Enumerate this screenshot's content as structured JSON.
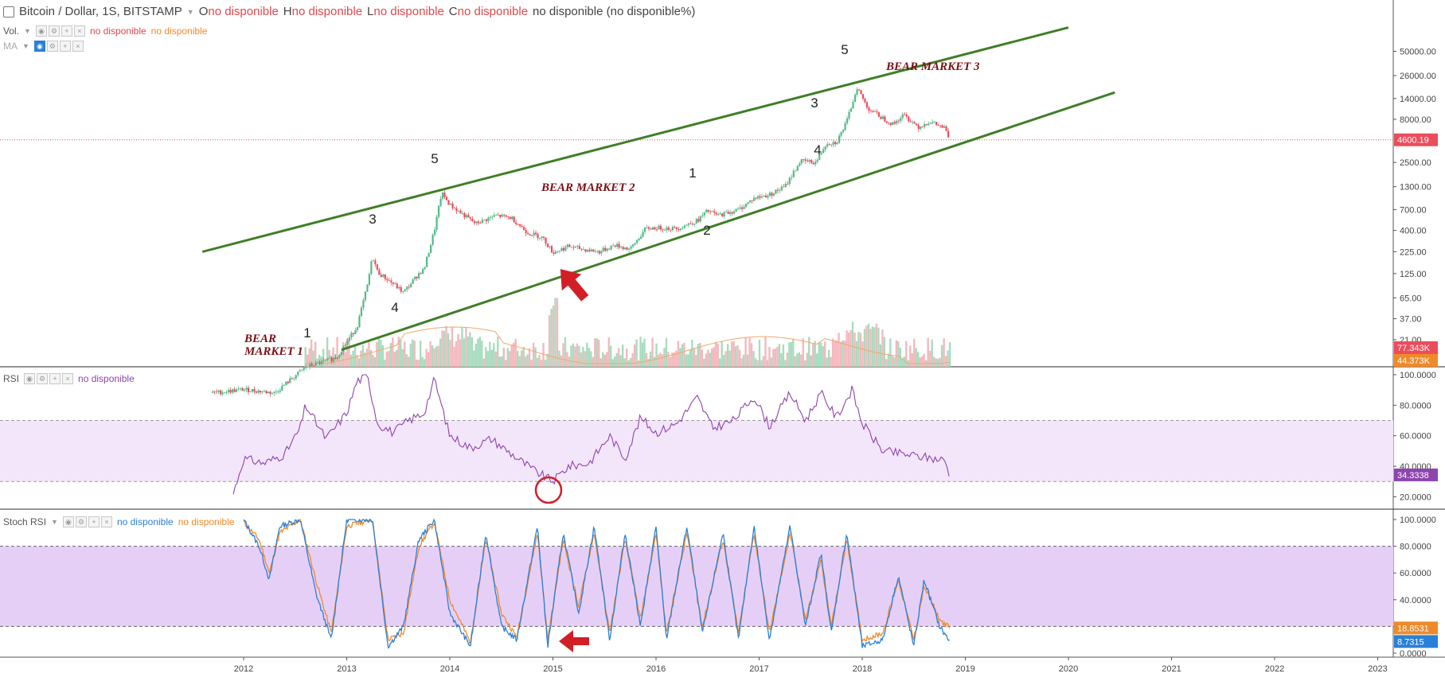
{
  "header": {
    "symbol_title": "Bitcoin / Dollar, 1S, BITSTAMP",
    "ohlc": [
      {
        "key": "O",
        "value": "no disponible"
      },
      {
        "key": "H",
        "value": "no disponible"
      },
      {
        "key": "L",
        "value": "no disponible"
      },
      {
        "key": "C",
        "value": "no disponible"
      }
    ],
    "change": "no disponible (no disponible%)",
    "vol_label": "Vol.",
    "vol_value_1": "no disponible",
    "vol_value_2": "no disponible",
    "ma_label": "MA"
  },
  "rsi_legend": {
    "label": "RSI",
    "value": "no disponible"
  },
  "stoch_legend": {
    "label": "Stoch RSI",
    "value_k": "no disponible",
    "value_d": "no disponible"
  },
  "colors": {
    "up": "#53b987",
    "down": "#eb4d5c",
    "channel": "#3f7f27",
    "annotation": "#7a0f14",
    "arrow": "#d21f26",
    "rsi": "#8e44ad",
    "stoch_k": "#2a80d6",
    "stoch_d": "#f08a28",
    "rsi_band": "#f3e6fb",
    "stoch_band": "#e6cff7"
  },
  "chart_data": [
    {
      "type": "candlestick",
      "title": "Bitcoin / Dollar, 1S, BITSTAMP",
      "x_ticks": [
        "2012",
        "2013",
        "2014",
        "2015",
        "2016",
        "2017",
        "2018",
        "2019",
        "2020",
        "2021",
        "2022",
        "2023"
      ],
      "y_scale": "log",
      "y_ticks": [
        "21.00",
        "37.00",
        "65.00",
        "125.00",
        "225.00",
        "400.00",
        "700.00",
        "1300.00",
        "2500.00",
        "4600.19",
        "8000.00",
        "14000.00",
        "26000.00",
        "50000.00"
      ],
      "last_price": "4600.19",
      "price_series": [
        {
          "x": 2011.7,
          "y": 5
        },
        {
          "x": 2012.0,
          "y": 5.5
        },
        {
          "x": 2012.3,
          "y": 5
        },
        {
          "x": 2012.6,
          "y": 10
        },
        {
          "x": 2012.9,
          "y": 13
        },
        {
          "x": 2013.1,
          "y": 30
        },
        {
          "x": 2013.2,
          "y": 90
        },
        {
          "x": 2013.25,
          "y": 200
        },
        {
          "x": 2013.3,
          "y": 130
        },
        {
          "x": 2013.45,
          "y": 95
        },
        {
          "x": 2013.55,
          "y": 75
        },
        {
          "x": 2013.7,
          "y": 125
        },
        {
          "x": 2013.75,
          "y": 140
        },
        {
          "x": 2013.85,
          "y": 400
        },
        {
          "x": 2013.92,
          "y": 1100
        },
        {
          "x": 2014.0,
          "y": 800
        },
        {
          "x": 2014.1,
          "y": 650
        },
        {
          "x": 2014.25,
          "y": 480
        },
        {
          "x": 2014.45,
          "y": 600
        },
        {
          "x": 2014.6,
          "y": 560
        },
        {
          "x": 2014.75,
          "y": 380
        },
        {
          "x": 2014.9,
          "y": 330
        },
        {
          "x": 2015.0,
          "y": 220
        },
        {
          "x": 2015.15,
          "y": 260
        },
        {
          "x": 2015.3,
          "y": 240
        },
        {
          "x": 2015.45,
          "y": 225
        },
        {
          "x": 2015.6,
          "y": 270
        },
        {
          "x": 2015.75,
          "y": 240
        },
        {
          "x": 2015.9,
          "y": 420
        },
        {
          "x": 2016.0,
          "y": 430
        },
        {
          "x": 2016.2,
          "y": 420
        },
        {
          "x": 2016.4,
          "y": 520
        },
        {
          "x": 2016.5,
          "y": 680
        },
        {
          "x": 2016.6,
          "y": 600
        },
        {
          "x": 2016.8,
          "y": 700
        },
        {
          "x": 2016.95,
          "y": 950
        },
        {
          "x": 2017.1,
          "y": 1050
        },
        {
          "x": 2017.25,
          "y": 1300
        },
        {
          "x": 2017.4,
          "y": 2600
        },
        {
          "x": 2017.55,
          "y": 2500
        },
        {
          "x": 2017.65,
          "y": 4200
        },
        {
          "x": 2017.75,
          "y": 4300
        },
        {
          "x": 2017.85,
          "y": 7500
        },
        {
          "x": 2017.95,
          "y": 19000
        },
        {
          "x": 2018.05,
          "y": 11000
        },
        {
          "x": 2018.15,
          "y": 9000
        },
        {
          "x": 2018.3,
          "y": 7000
        },
        {
          "x": 2018.4,
          "y": 9000
        },
        {
          "x": 2018.55,
          "y": 6500
        },
        {
          "x": 2018.65,
          "y": 7500
        },
        {
          "x": 2018.8,
          "y": 6300
        },
        {
          "x": 2018.85,
          "y": 4600
        }
      ],
      "channel_lines": [
        {
          "from": {
            "x": 2011.6,
            "y": 225
          },
          "to": {
            "x": 2020.0,
            "y": 95000
          }
        },
        {
          "from": {
            "x": 2012.95,
            "y": 16
          },
          "to": {
            "x": 2020.45,
            "y": 16500
          }
        }
      ],
      "annotations": [
        {
          "text": "BEAR\nMARKET 1",
          "kind": "bold-italic"
        },
        {
          "text": "BEAR MARKET 2",
          "kind": "bold-italic"
        },
        {
          "text": "BEAR MARKET 3",
          "kind": "bold-italic"
        },
        {
          "text": "1"
        },
        {
          "text": "3"
        },
        {
          "text": "4"
        },
        {
          "text": "5"
        },
        {
          "text": "1"
        },
        {
          "text": "2"
        },
        {
          "text": "3"
        },
        {
          "text": "4"
        },
        {
          "text": "5"
        }
      ],
      "volume_labels": [
        "77.343K",
        "44.373K"
      ]
    },
    {
      "type": "line",
      "title": "RSI",
      "y_ticks": [
        "20.0000",
        "40.0000",
        "60.0000",
        "80.0000",
        "100.0000"
      ],
      "band": [
        30,
        70
      ],
      "last_value": "34.3338",
      "series": [
        {
          "values": [
            {
              "x": 2011.9,
              "y": 22
            },
            {
              "x": 2012.0,
              "y": 45
            },
            {
              "x": 2012.2,
              "y": 42
            },
            {
              "x": 2012.4,
              "y": 48
            },
            {
              "x": 2012.55,
              "y": 65
            },
            {
              "x": 2012.6,
              "y": 80
            },
            {
              "x": 2012.8,
              "y": 58
            },
            {
              "x": 2013.0,
              "y": 75
            },
            {
              "x": 2013.1,
              "y": 96
            },
            {
              "x": 2013.2,
              "y": 99
            },
            {
              "x": 2013.3,
              "y": 68
            },
            {
              "x": 2013.45,
              "y": 62
            },
            {
              "x": 2013.6,
              "y": 70
            },
            {
              "x": 2013.75,
              "y": 75
            },
            {
              "x": 2013.85,
              "y": 97
            },
            {
              "x": 2014.0,
              "y": 60
            },
            {
              "x": 2014.2,
              "y": 52
            },
            {
              "x": 2014.4,
              "y": 58
            },
            {
              "x": 2014.6,
              "y": 48
            },
            {
              "x": 2014.8,
              "y": 38
            },
            {
              "x": 2015.0,
              "y": 30
            },
            {
              "x": 2015.15,
              "y": 40
            },
            {
              "x": 2015.35,
              "y": 42
            },
            {
              "x": 2015.55,
              "y": 60
            },
            {
              "x": 2015.7,
              "y": 45
            },
            {
              "x": 2015.85,
              "y": 72
            },
            {
              "x": 2016.0,
              "y": 62
            },
            {
              "x": 2016.2,
              "y": 68
            },
            {
              "x": 2016.4,
              "y": 85
            },
            {
              "x": 2016.55,
              "y": 65
            },
            {
              "x": 2016.75,
              "y": 70
            },
            {
              "x": 2016.95,
              "y": 86
            },
            {
              "x": 2017.1,
              "y": 66
            },
            {
              "x": 2017.3,
              "y": 88
            },
            {
              "x": 2017.45,
              "y": 70
            },
            {
              "x": 2017.6,
              "y": 88
            },
            {
              "x": 2017.75,
              "y": 72
            },
            {
              "x": 2017.9,
              "y": 90
            },
            {
              "x": 2018.0,
              "y": 68
            },
            {
              "x": 2018.2,
              "y": 50
            },
            {
              "x": 2018.4,
              "y": 48
            },
            {
              "x": 2018.6,
              "y": 46
            },
            {
              "x": 2018.8,
              "y": 44
            },
            {
              "x": 2018.85,
              "y": 34.3
            }
          ]
        }
      ]
    },
    {
      "type": "line",
      "title": "Stoch RSI",
      "y_ticks": [
        "0.0000",
        "20.0000",
        "40.0000",
        "60.0000",
        "80.0000",
        "100.0000"
      ],
      "band": [
        20,
        80
      ],
      "last_values": [
        "18.8531",
        "8.7315"
      ],
      "series": [
        {
          "values": [
            {
              "x": 2012.0,
              "y": 100
            },
            {
              "x": 2012.15,
              "y": 80
            },
            {
              "x": 2012.25,
              "y": 55
            },
            {
              "x": 2012.35,
              "y": 95
            },
            {
              "x": 2012.55,
              "y": 100
            },
            {
              "x": 2012.7,
              "y": 45
            },
            {
              "x": 2012.85,
              "y": 10
            },
            {
              "x": 2013.0,
              "y": 100
            },
            {
              "x": 2013.25,
              "y": 100
            },
            {
              "x": 2013.4,
              "y": 5
            },
            {
              "x": 2013.55,
              "y": 20
            },
            {
              "x": 2013.7,
              "y": 85
            },
            {
              "x": 2013.85,
              "y": 100
            },
            {
              "x": 2014.0,
              "y": 30
            },
            {
              "x": 2014.2,
              "y": 5
            },
            {
              "x": 2014.35,
              "y": 90
            },
            {
              "x": 2014.5,
              "y": 20
            },
            {
              "x": 2014.65,
              "y": 10
            },
            {
              "x": 2014.85,
              "y": 95
            },
            {
              "x": 2014.95,
              "y": 5
            },
            {
              "x": 2015.1,
              "y": 90
            },
            {
              "x": 2015.25,
              "y": 30
            },
            {
              "x": 2015.4,
              "y": 95
            },
            {
              "x": 2015.55,
              "y": 10
            },
            {
              "x": 2015.7,
              "y": 90
            },
            {
              "x": 2015.85,
              "y": 20
            },
            {
              "x": 2016.0,
              "y": 95
            },
            {
              "x": 2016.1,
              "y": 10
            },
            {
              "x": 2016.3,
              "y": 95
            },
            {
              "x": 2016.45,
              "y": 15
            },
            {
              "x": 2016.65,
              "y": 90
            },
            {
              "x": 2016.8,
              "y": 10
            },
            {
              "x": 2016.95,
              "y": 95
            },
            {
              "x": 2017.1,
              "y": 10
            },
            {
              "x": 2017.3,
              "y": 95
            },
            {
              "x": 2017.45,
              "y": 20
            },
            {
              "x": 2017.6,
              "y": 75
            },
            {
              "x": 2017.7,
              "y": 15
            },
            {
              "x": 2017.85,
              "y": 90
            },
            {
              "x": 2018.0,
              "y": 5
            },
            {
              "x": 2018.2,
              "y": 10
            },
            {
              "x": 2018.35,
              "y": 58
            },
            {
              "x": 2018.5,
              "y": 5
            },
            {
              "x": 2018.6,
              "y": 55
            },
            {
              "x": 2018.75,
              "y": 20
            },
            {
              "x": 2018.85,
              "y": 8.7
            }
          ]
        },
        {
          "values": [
            {
              "x": 2012.0,
              "y": 98
            },
            {
              "x": 2012.15,
              "y": 85
            },
            {
              "x": 2012.25,
              "y": 60
            },
            {
              "x": 2012.35,
              "y": 90
            },
            {
              "x": 2012.55,
              "y": 100
            },
            {
              "x": 2012.7,
              "y": 55
            },
            {
              "x": 2012.85,
              "y": 15
            },
            {
              "x": 2013.0,
              "y": 95
            },
            {
              "x": 2013.25,
              "y": 100
            },
            {
              "x": 2013.4,
              "y": 10
            },
            {
              "x": 2013.55,
              "y": 15
            },
            {
              "x": 2013.7,
              "y": 80
            },
            {
              "x": 2013.85,
              "y": 98
            },
            {
              "x": 2014.0,
              "y": 40
            },
            {
              "x": 2014.2,
              "y": 8
            },
            {
              "x": 2014.35,
              "y": 85
            },
            {
              "x": 2014.5,
              "y": 30
            },
            {
              "x": 2014.65,
              "y": 12
            },
            {
              "x": 2014.85,
              "y": 90
            },
            {
              "x": 2014.95,
              "y": 10
            },
            {
              "x": 2015.1,
              "y": 85
            },
            {
              "x": 2015.25,
              "y": 35
            },
            {
              "x": 2015.4,
              "y": 90
            },
            {
              "x": 2015.55,
              "y": 15
            },
            {
              "x": 2015.7,
              "y": 85
            },
            {
              "x": 2015.85,
              "y": 25
            },
            {
              "x": 2016.0,
              "y": 90
            },
            {
              "x": 2016.1,
              "y": 15
            },
            {
              "x": 2016.3,
              "y": 90
            },
            {
              "x": 2016.45,
              "y": 20
            },
            {
              "x": 2016.65,
              "y": 85
            },
            {
              "x": 2016.8,
              "y": 15
            },
            {
              "x": 2016.95,
              "y": 90
            },
            {
              "x": 2017.1,
              "y": 15
            },
            {
              "x": 2017.3,
              "y": 90
            },
            {
              "x": 2017.45,
              "y": 25
            },
            {
              "x": 2017.6,
              "y": 70
            },
            {
              "x": 2017.7,
              "y": 20
            },
            {
              "x": 2017.85,
              "y": 85
            },
            {
              "x": 2018.0,
              "y": 10
            },
            {
              "x": 2018.2,
              "y": 15
            },
            {
              "x": 2018.35,
              "y": 55
            },
            {
              "x": 2018.5,
              "y": 10
            },
            {
              "x": 2018.6,
              "y": 50
            },
            {
              "x": 2018.75,
              "y": 25
            },
            {
              "x": 2018.85,
              "y": 18.9
            }
          ]
        }
      ]
    }
  ]
}
